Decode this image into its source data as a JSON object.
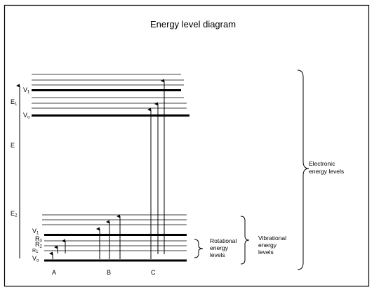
{
  "title": "Energy level diagram",
  "labels": {
    "E": "E",
    "E1": {
      "main": "E",
      "sub": "1"
    },
    "E2": {
      "main": "E",
      "sub": "2"
    },
    "V1_upper": {
      "main": "V",
      "sub": "1"
    },
    "V0_upper": {
      "main": "V",
      "sub": "o"
    },
    "V1_lower": {
      "main": "V",
      "sub": "1"
    },
    "V0_lower": {
      "main": "V",
      "sub": "o"
    },
    "R3": {
      "main": "R",
      "sub": "3"
    },
    "R2": {
      "main": "R",
      "sub": "2"
    },
    "R1": {
      "main": "R",
      "sub": "1"
    },
    "transition_A": "A",
    "transition_B": "B",
    "transition_C": "C"
  },
  "braces": {
    "rotational": [
      "Rotational",
      "energy",
      "levels"
    ],
    "vibrational": [
      "Vibrational",
      "energy",
      "levels"
    ],
    "electronic": [
      "Electronic",
      "energy levels"
    ]
  },
  "colors": {
    "line": "#000000",
    "background": "#ffffff"
  }
}
